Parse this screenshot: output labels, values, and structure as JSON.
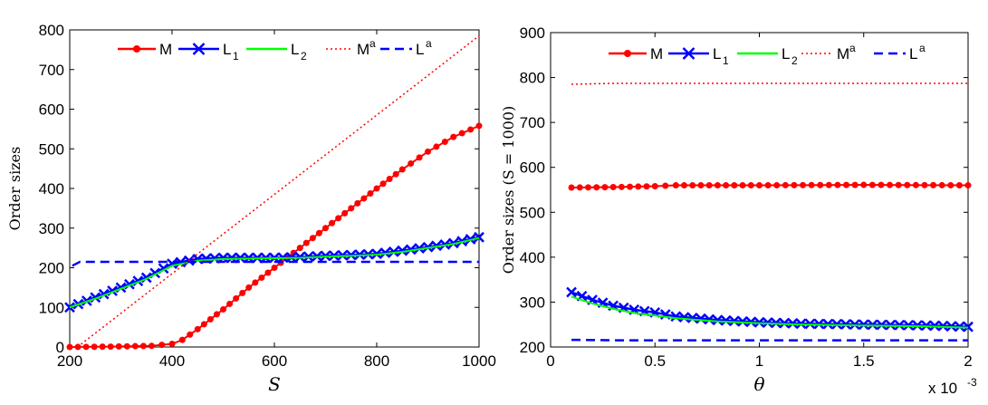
{
  "chart_data": [
    {
      "type": "line",
      "title": "",
      "xlabel": "S",
      "ylabel": "Order sizes",
      "xlim": [
        200,
        1000
      ],
      "ylim": [
        0,
        800
      ],
      "xticks": [
        "200",
        "400",
        "600",
        "800",
        "1000"
      ],
      "yticks": [
        "0",
        "100",
        "200",
        "300",
        "400",
        "500",
        "600",
        "700",
        "800"
      ],
      "legend": [
        {
          "name": "M",
          "sub": "",
          "sup": "",
          "color": "#ff0000",
          "style": "solid-dot"
        },
        {
          "name": "L",
          "sub": "1",
          "sup": "",
          "color": "#0000ff",
          "style": "solid-x"
        },
        {
          "name": "L",
          "sub": "2",
          "sup": "",
          "color": "#00ff00",
          "style": "solid"
        },
        {
          "name": "M",
          "sub": "",
          "sup": "a",
          "color": "#ff0000",
          "style": "dotted"
        },
        {
          "name": "L",
          "sub": "",
          "sup": "a",
          "color": "#0000ff",
          "style": "dashed"
        }
      ],
      "series": [
        {
          "name": "M",
          "color": "#ff0000",
          "marker": "dot",
          "x": [
            200,
            280,
            360,
            400,
            420,
            450,
            500,
            550,
            600,
            650,
            700,
            750,
            800,
            850,
            900,
            950,
            1000
          ],
          "y": [
            0,
            1,
            3,
            8,
            18,
            45,
            95,
            150,
            200,
            250,
            300,
            350,
            400,
            448,
            493,
            530,
            558
          ]
        },
        {
          "name": "L1",
          "color": "#0000ff",
          "marker": "x",
          "x": [
            200,
            250,
            300,
            350,
            400,
            450,
            500,
            550,
            600,
            650,
            700,
            750,
            800,
            850,
            900,
            950,
            1000
          ],
          "y": [
            100,
            125,
            150,
            175,
            210,
            222,
            225,
            225,
            225,
            227,
            230,
            232,
            235,
            243,
            252,
            262,
            277
          ]
        },
        {
          "name": "L2",
          "color": "#00ff00",
          "marker": "none",
          "x": [
            200,
            250,
            300,
            350,
            400,
            450,
            500,
            550,
            600,
            650,
            700,
            750,
            800,
            850,
            900,
            950,
            1000
          ],
          "y": [
            100,
            122,
            147,
            172,
            205,
            218,
            222,
            223,
            224,
            225,
            228,
            230,
            233,
            240,
            250,
            260,
            275
          ]
        },
        {
          "name": "Ma",
          "color": "#ff0000",
          "marker": "none",
          "dash": "dotted",
          "x": [
            215,
            1000
          ],
          "y": [
            0,
            785
          ]
        },
        {
          "name": "La",
          "color": "#0000ff",
          "marker": "none",
          "dash": "dashed",
          "x": [
            205,
            220,
            1000
          ],
          "y": [
            205,
            215,
            215
          ]
        }
      ]
    },
    {
      "type": "line",
      "title": "",
      "xlabel": "θ",
      "ylabel": "Order sizes (S = 1000)",
      "xlim": [
        0,
        2
      ],
      "ylim": [
        200,
        900
      ],
      "xticks": [
        "0",
        "0.5",
        "1",
        "1.5",
        "2"
      ],
      "yticks": [
        "200",
        "300",
        "400",
        "500",
        "600",
        "700",
        "800",
        "900"
      ],
      "x_scale_note": {
        "base": "x 10",
        "exp": "-3"
      },
      "legend": [
        {
          "name": "M",
          "sub": "",
          "sup": "",
          "color": "#ff0000",
          "style": "solid-dot"
        },
        {
          "name": "L",
          "sub": "1",
          "sup": "",
          "color": "#0000ff",
          "style": "solid-x"
        },
        {
          "name": "L",
          "sub": "2",
          "sup": "",
          "color": "#00ff00",
          "style": "solid"
        },
        {
          "name": "M",
          "sub": "",
          "sup": "a",
          "color": "#ff0000",
          "style": "dotted"
        },
        {
          "name": "L",
          "sub": "",
          "sup": "a",
          "color": "#0000ff",
          "style": "dashed"
        }
      ],
      "series": [
        {
          "name": "M",
          "color": "#ff0000",
          "marker": "dot",
          "x": [
            0.1,
            0.3,
            0.5,
            0.6,
            0.8,
            1.0,
            1.5,
            2.0
          ],
          "y": [
            555,
            556,
            558,
            560,
            560,
            560,
            561,
            560
          ]
        },
        {
          "name": "L1",
          "color": "#0000ff",
          "marker": "x",
          "x": [
            0.1,
            0.2,
            0.3,
            0.4,
            0.5,
            0.6,
            0.8,
            1.0,
            1.2,
            1.5,
            1.8,
            2.0
          ],
          "y": [
            322,
            305,
            292,
            283,
            277,
            268,
            260,
            255,
            252,
            250,
            248,
            245
          ]
        },
        {
          "name": "L2",
          "color": "#00ff00",
          "marker": "none",
          "x": [
            0.1,
            0.2,
            0.3,
            0.4,
            0.5,
            0.6,
            0.8,
            1.0,
            1.2,
            1.5,
            1.8,
            2.0
          ],
          "y": [
            312,
            297,
            285,
            276,
            270,
            264,
            257,
            253,
            250,
            248,
            246,
            243
          ]
        },
        {
          "name": "Ma",
          "color": "#ff0000",
          "marker": "none",
          "dash": "dotted",
          "x": [
            0.1,
            0.3,
            2.0
          ],
          "y": [
            785,
            787,
            787
          ]
        },
        {
          "name": "La",
          "color": "#0000ff",
          "marker": "none",
          "dash": "dashed",
          "x": [
            0.1,
            0.3,
            2.0
          ],
          "y": [
            216,
            215,
            215
          ]
        }
      ]
    }
  ]
}
